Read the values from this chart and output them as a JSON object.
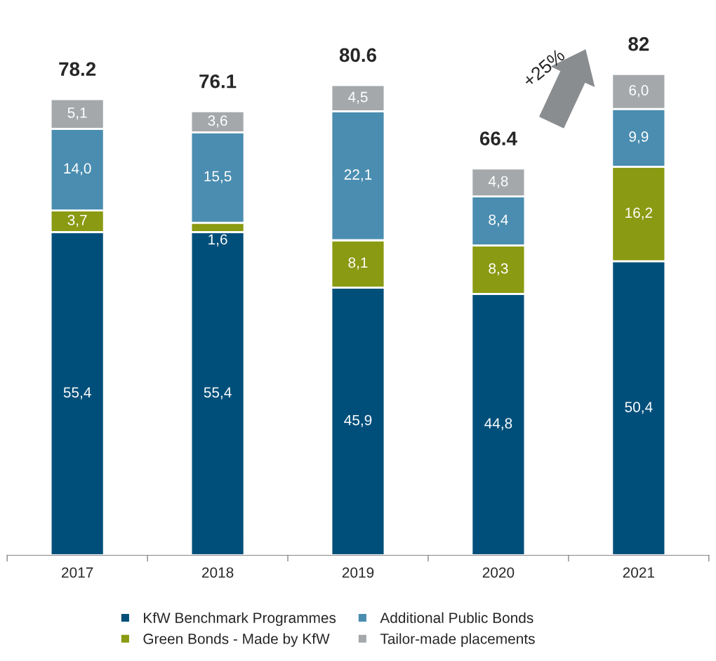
{
  "chart_data": {
    "type": "bar",
    "stacked": true,
    "categories": [
      "2017",
      "2018",
      "2019",
      "2020",
      "2021"
    ],
    "series": [
      {
        "name": "KfW Benchmark Programmes",
        "color": "#004f7a",
        "values": [
          55.4,
          55.4,
          45.9,
          44.8,
          50.4
        ],
        "value_labels": [
          "55,4",
          "55,4",
          "45,9",
          "44,8",
          "50,4"
        ]
      },
      {
        "name": "Green Bonds - Made by KfW",
        "color": "#8a9a12",
        "values": [
          3.7,
          1.6,
          8.1,
          8.3,
          16.2
        ],
        "value_labels": [
          "3,7",
          "1,6",
          "8,1",
          "8,3",
          "16,2"
        ]
      },
      {
        "name": "Additional Public Bonds",
        "color": "#4a8db0",
        "values": [
          14.0,
          15.5,
          22.1,
          8.4,
          9.9
        ],
        "value_labels": [
          "14,0",
          "15,5",
          "22,1",
          "8,4",
          "9,9"
        ]
      },
      {
        "name": "Tailor-made placements",
        "color": "#a5a8ab",
        "values": [
          5.1,
          3.6,
          4.5,
          4.8,
          6.0
        ],
        "value_labels": [
          "5,1",
          "3,6",
          "4,5",
          "4,8",
          "6,0"
        ]
      }
    ],
    "totals": [
      "78.2",
      "76.1",
      "80.6",
      "66.4",
      "82"
    ],
    "annotations": [
      "+25%"
    ],
    "legend": "bottom",
    "grid": false
  }
}
